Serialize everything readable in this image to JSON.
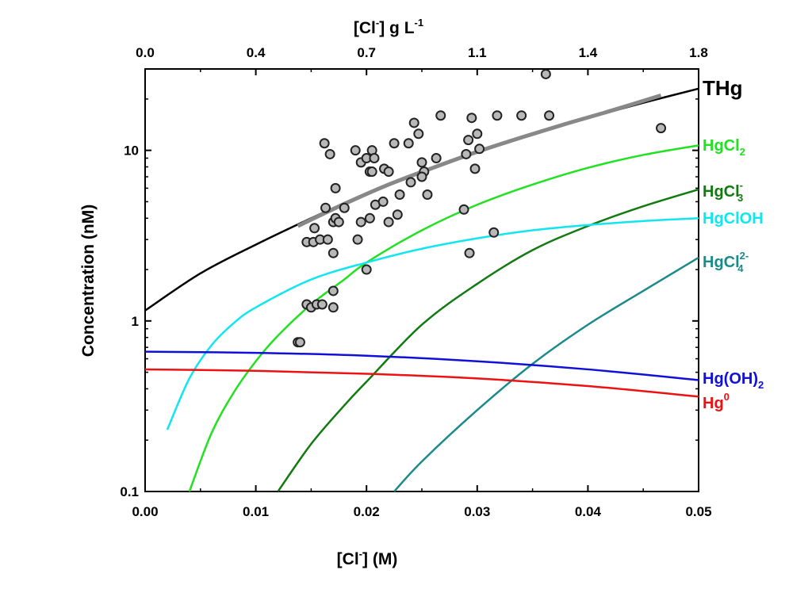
{
  "chart_data": {
    "type": "line",
    "x_axis": {
      "label_main": "[Cl",
      "label_sup": "-",
      "label_end": "] (M)",
      "range": [
        0,
        0.05
      ],
      "ticks": [
        0.0,
        0.01,
        0.02,
        0.03,
        0.04,
        0.05
      ],
      "tick_labels": [
        "0.00",
        "0.01",
        "0.02",
        "0.03",
        "0.04",
        "0.05"
      ]
    },
    "x2_axis": {
      "label_main": "[Cl",
      "label_sup1": "-",
      "label_mid": "] g L",
      "label_sup2": "-1",
      "tick_labels": [
        "0.0",
        "0.4",
        "0.7",
        "1.1",
        "1.4",
        "1.8"
      ]
    },
    "y_axis": {
      "label": "Concentration (nM)",
      "scale": "log",
      "range": [
        0.1,
        30
      ],
      "ticks": [
        0.1,
        1,
        10
      ],
      "tick_labels": [
        "0.1",
        "1",
        "10"
      ]
    },
    "series": [
      {
        "name": "THg",
        "label_base": "THg",
        "label_sub": "",
        "label_sup": "",
        "label_end": "",
        "color": "#000000",
        "x": [
          0.0,
          0.005,
          0.01,
          0.015,
          0.02,
          0.025,
          0.03,
          0.035,
          0.04,
          0.045,
          0.05
        ],
        "y": [
          1.15,
          1.9,
          2.8,
          4.0,
          5.6,
          7.4,
          9.7,
          12.5,
          15.5,
          19.0,
          23.0
        ]
      },
      {
        "name": "HgCl2",
        "label_base": "HgCl",
        "label_sub": "2",
        "label_sup": "",
        "label_end": "",
        "color": "#22e022",
        "x": [
          0.004,
          0.006,
          0.008,
          0.01,
          0.012,
          0.015,
          0.018,
          0.02,
          0.025,
          0.03,
          0.035,
          0.04,
          0.045,
          0.05
        ],
        "y": [
          0.1,
          0.22,
          0.38,
          0.58,
          0.82,
          1.25,
          1.75,
          2.2,
          3.4,
          4.8,
          6.3,
          7.9,
          9.4,
          10.7
        ]
      },
      {
        "name": "HgCl3-",
        "label_base": "HgCl",
        "label_sub": "3",
        "label_sup": "-",
        "label_end": "",
        "color": "#117a11",
        "x": [
          0.012,
          0.015,
          0.018,
          0.02,
          0.025,
          0.03,
          0.035,
          0.04,
          0.045,
          0.05
        ],
        "y": [
          0.1,
          0.19,
          0.32,
          0.44,
          0.95,
          1.65,
          2.6,
          3.6,
          4.7,
          5.9
        ]
      },
      {
        "name": "HgClOH",
        "label_base": "HgClOH",
        "label_sub": "",
        "label_sup": "",
        "label_end": "",
        "color": "#11e6f0",
        "x": [
          0.002,
          0.004,
          0.006,
          0.008,
          0.01,
          0.015,
          0.02,
          0.025,
          0.03,
          0.035,
          0.04,
          0.045,
          0.05
        ],
        "y": [
          0.23,
          0.46,
          0.72,
          0.97,
          1.2,
          1.75,
          2.2,
          2.65,
          3.05,
          3.4,
          3.65,
          3.85,
          4.0
        ]
      },
      {
        "name": "HgCl42-",
        "label_base": "HgCl",
        "label_sub": "4",
        "label_sup": "2-",
        "label_end": "",
        "color": "#1a8a8a",
        "x": [
          0.0225,
          0.025,
          0.03,
          0.035,
          0.04,
          0.045,
          0.05
        ],
        "y": [
          0.1,
          0.15,
          0.3,
          0.56,
          0.95,
          1.5,
          2.35
        ]
      },
      {
        "name": "Hg(OH)2",
        "label_base": "Hg(OH)",
        "label_sub": "2",
        "label_sup": "",
        "label_end": "",
        "color": "#1010d8",
        "x": [
          0.0,
          0.01,
          0.02,
          0.03,
          0.04,
          0.05
        ],
        "y": [
          0.66,
          0.65,
          0.625,
          0.58,
          0.52,
          0.45
        ]
      },
      {
        "name": "Hg0",
        "label_base": "Hg",
        "label_sub": "",
        "label_sup": "0",
        "label_end": "",
        "color": "#ee1111",
        "x": [
          0.0,
          0.01,
          0.02,
          0.03,
          0.04,
          0.05
        ],
        "y": [
          0.52,
          0.51,
          0.49,
          0.46,
          0.415,
          0.36
        ]
      }
    ],
    "fit_line": {
      "color": "#888888",
      "x": [
        0.0138,
        0.018,
        0.022,
        0.026,
        0.03,
        0.034,
        0.038,
        0.042,
        0.0466
      ],
      "y": [
        3.6,
        4.85,
        6.3,
        7.9,
        9.8,
        11.9,
        14.3,
        17.0,
        21.0
      ]
    },
    "scatter": {
      "fill": "#b8b8b8",
      "edge": "#222222",
      "points": [
        [
          0.0138,
          0.75
        ],
        [
          0.014,
          0.75
        ],
        [
          0.0146,
          1.25
        ],
        [
          0.015,
          1.2
        ],
        [
          0.0155,
          1.25
        ],
        [
          0.016,
          1.25
        ],
        [
          0.017,
          1.2
        ],
        [
          0.017,
          1.5
        ],
        [
          0.0146,
          2.9
        ],
        [
          0.0152,
          2.9
        ],
        [
          0.0158,
          3.0
        ],
        [
          0.0165,
          3.0
        ],
        [
          0.017,
          2.5
        ],
        [
          0.0153,
          3.5
        ],
        [
          0.017,
          3.8
        ],
        [
          0.0172,
          4.0
        ],
        [
          0.0175,
          3.8
        ],
        [
          0.018,
          4.6
        ],
        [
          0.0163,
          4.6
        ],
        [
          0.0172,
          6.0
        ],
        [
          0.0162,
          11.0
        ],
        [
          0.0167,
          9.5
        ],
        [
          0.019,
          10.0
        ],
        [
          0.0195,
          8.5
        ],
        [
          0.02,
          9.0
        ],
        [
          0.0203,
          7.5
        ],
        [
          0.0205,
          10.0
        ],
        [
          0.0207,
          9.0
        ],
        [
          0.0205,
          7.5
        ],
        [
          0.0192,
          3.0
        ],
        [
          0.0195,
          3.8
        ],
        [
          0.02,
          2.0
        ],
        [
          0.0203,
          4.0
        ],
        [
          0.0208,
          4.8
        ],
        [
          0.0215,
          5.0
        ],
        [
          0.0216,
          7.8
        ],
        [
          0.022,
          7.5
        ],
        [
          0.022,
          3.8
        ],
        [
          0.0225,
          11.0
        ],
        [
          0.0228,
          4.2
        ],
        [
          0.023,
          5.5
        ],
        [
          0.0238,
          11.0
        ],
        [
          0.024,
          6.5
        ],
        [
          0.0243,
          14.5
        ],
        [
          0.0247,
          12.5
        ],
        [
          0.025,
          8.5
        ],
        [
          0.0252,
          7.5
        ],
        [
          0.025,
          7.0
        ],
        [
          0.0255,
          5.5
        ],
        [
          0.0263,
          9.0
        ],
        [
          0.0267,
          16.0
        ],
        [
          0.0288,
          4.5
        ],
        [
          0.029,
          9.5
        ],
        [
          0.0292,
          11.5
        ],
        [
          0.0295,
          15.5
        ],
        [
          0.0293,
          2.5
        ],
        [
          0.0298,
          7.8
        ],
        [
          0.03,
          12.5
        ],
        [
          0.0302,
          10.2
        ],
        [
          0.0318,
          16.0
        ],
        [
          0.0315,
          3.3
        ],
        [
          0.034,
          16.0
        ],
        [
          0.0362,
          28.0
        ],
        [
          0.0365,
          16.0
        ],
        [
          0.0466,
          13.5
        ]
      ]
    },
    "legend": "inline labels at right end of curves",
    "grid": false
  }
}
